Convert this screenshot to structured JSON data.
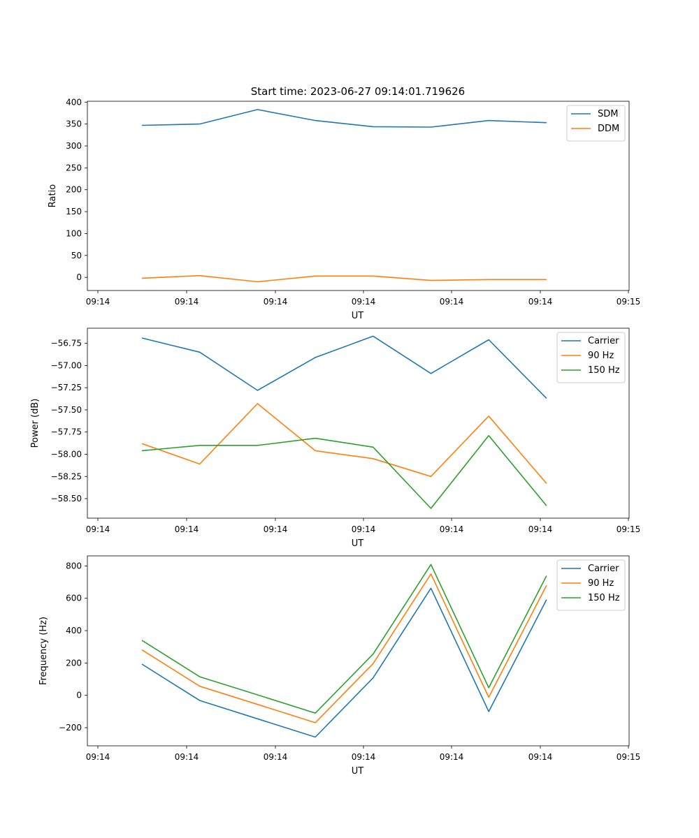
{
  "title": "Start time: 2023-06-27 09:14:01.719626",
  "colors": {
    "blue": "#1f77b4",
    "orange": "#ff7f0e",
    "green": "#2ca02c"
  },
  "chart_data": [
    {
      "type": "line",
      "xlabel": "UT",
      "ylabel": "Ratio",
      "xticks": [
        "09:14",
        "09:14",
        "09:14",
        "09:14",
        "09:14",
        "09:14",
        "09:15"
      ],
      "ylim": [
        -30,
        402
      ],
      "yticks": [
        "400",
        "350",
        "300",
        "250",
        "200",
        "150",
        "100",
        "50",
        "0"
      ],
      "yticks_values": [
        400,
        350,
        300,
        250,
        200,
        150,
        100,
        50,
        0
      ],
      "x_count": 8,
      "legend": "top-right",
      "series": [
        {
          "name": "SDM",
          "color": "#1f77b4",
          "values": [
            347,
            350,
            383,
            358,
            344,
            343,
            358,
            353
          ]
        },
        {
          "name": "DDM",
          "color": "#ff7f0e",
          "values": [
            -2,
            4,
            -10,
            3,
            3,
            -7,
            -5,
            -5
          ]
        }
      ]
    },
    {
      "type": "line",
      "xlabel": "UT",
      "ylabel": "Power (dB)",
      "xticks": [
        "09:14",
        "09:14",
        "09:14",
        "09:14",
        "09:14",
        "09:14",
        "09:15"
      ],
      "ylim": [
        -58.72,
        -56.58
      ],
      "yticks": [
        "−56.75",
        "−57.00",
        "−57.25",
        "−57.50",
        "−57.75",
        "−58.00",
        "−58.25",
        "−58.50"
      ],
      "yticks_values": [
        -56.75,
        -57.0,
        -57.25,
        -57.5,
        -57.75,
        -58.0,
        -58.25,
        -58.5
      ],
      "x_count": 8,
      "legend": "top-right",
      "series": [
        {
          "name": "Carrier",
          "color": "#1f77b4",
          "values": [
            -56.69,
            -56.85,
            -57.28,
            -56.91,
            -56.67,
            -57.09,
            -56.71,
            -57.37
          ]
        },
        {
          "name": "90 Hz",
          "color": "#ff7f0e",
          "values": [
            -57.88,
            -58.11,
            -57.43,
            -57.96,
            -58.05,
            -58.25,
            -57.57,
            -58.33
          ]
        },
        {
          "name": "150 Hz",
          "color": "#2ca02c",
          "values": [
            -57.96,
            -57.9,
            -57.9,
            -57.82,
            -57.92,
            -58.61,
            -57.79,
            -58.58
          ]
        }
      ]
    },
    {
      "type": "line",
      "xlabel": "UT",
      "ylabel": "Frequency (Hz)",
      "xticks": [
        "09:14",
        "09:14",
        "09:14",
        "09:14",
        "09:14",
        "09:14",
        "09:15"
      ],
      "ylim": [
        -312,
        862
      ],
      "yticks": [
        "800",
        "600",
        "400",
        "200",
        "0",
        "−200"
      ],
      "yticks_values": [
        800,
        600,
        400,
        200,
        0,
        -200
      ],
      "x_count": 8,
      "legend": "top-right",
      "series": [
        {
          "name": "Carrier",
          "color": "#1f77b4",
          "values": [
            193,
            -32,
            -145,
            -258,
            108,
            662,
            -100,
            592
          ]
        },
        {
          "name": "90 Hz",
          "color": "#ff7f0e",
          "values": [
            281,
            56,
            -56,
            -169,
            196,
            750,
            -12,
            680
          ]
        },
        {
          "name": "150 Hz",
          "color": "#2ca02c",
          "values": [
            340,
            115,
            3,
            -110,
            255,
            809,
            47,
            739
          ]
        }
      ]
    }
  ]
}
